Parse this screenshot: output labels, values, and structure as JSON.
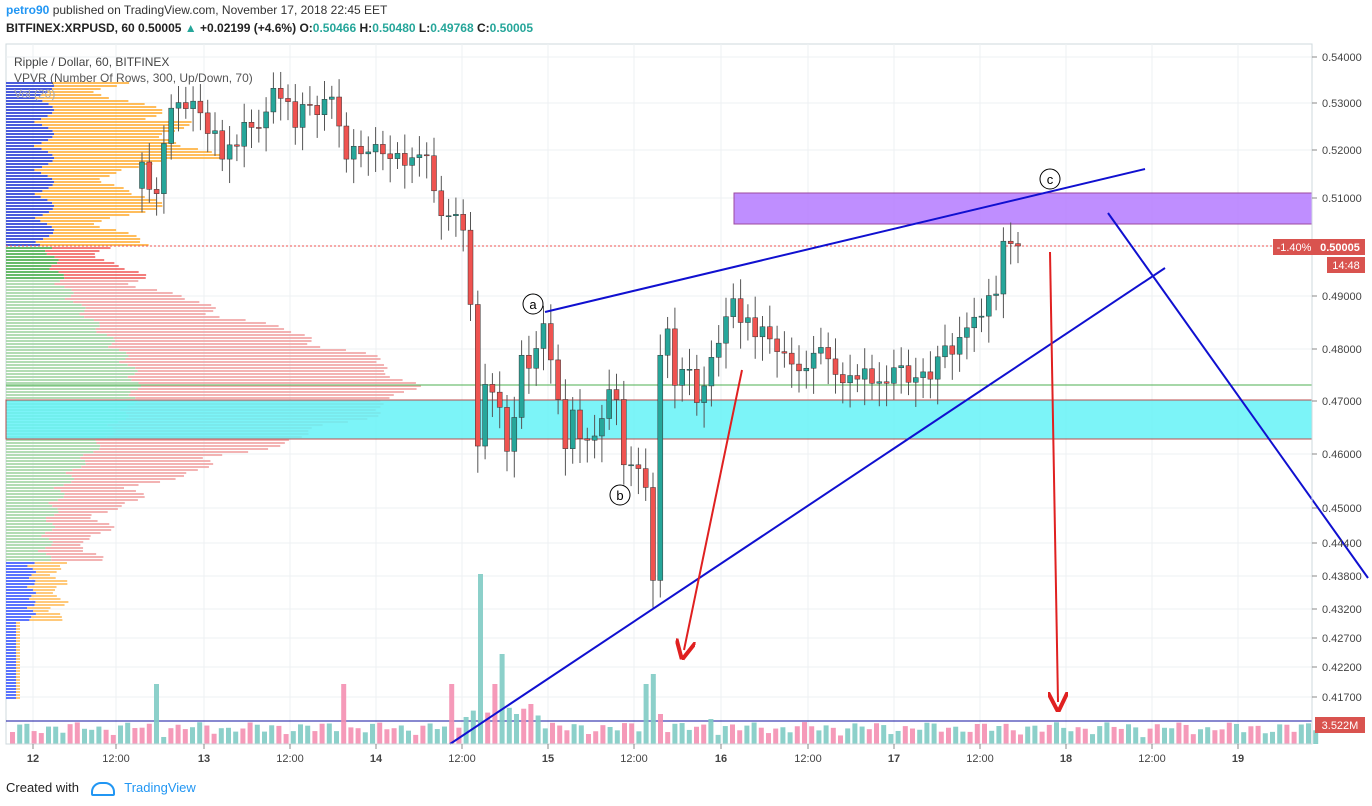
{
  "header": {
    "user": "petro90",
    "published": "published on TradingView.com, November 17, 2018 22:45 EET",
    "symbol_line": "BITFINEX:XRPUSD, 60",
    "last": "0.50005",
    "change": "+0.02199 (+4.6%)",
    "o_label": "O:",
    "o": "0.50466",
    "h_label": "H:",
    "h": "0.50480",
    "l_label": "L:",
    "l": "0.49768",
    "c_label": "C:",
    "c": "0.50005"
  },
  "legend": {
    "title": "Ripple / Dollar, 60, BITFINEX",
    "indicator": "VPVR (Number Of Rows, 300, Up/Down, 70)",
    "volume": "Vol (20)"
  },
  "price_badges": {
    "change_pct": "-1.40%",
    "price": "0.50005",
    "countdown": "14:48",
    "volume": "3.522M"
  },
  "annotations": {
    "a": "a",
    "b": "b",
    "c": "c"
  },
  "footer": {
    "created_with": "Created with",
    "brand": "TradingView"
  },
  "colors": {
    "up": "#26a69a",
    "down": "#ef5350",
    "trend": "#1010d0",
    "arrow": "#e02020",
    "resistance_zone": "#b57bff",
    "support_zone": "#66f3f7"
  },
  "chart_data": {
    "type": "candlestick",
    "y_ticks": [
      "0.54000",
      "0.53000",
      "0.52000",
      "0.51000",
      "0.50000",
      "0.49000",
      "0.48000",
      "0.47000",
      "0.46000",
      "0.45000",
      "0.44400",
      "0.43800",
      "0.43200",
      "0.42700",
      "0.42200",
      "0.41700"
    ],
    "x_ticks": [
      "12",
      "12:00",
      "13",
      "12:00",
      "14",
      "12:00",
      "15",
      "12:00",
      "16",
      "12:00",
      "17",
      "12:00",
      "18",
      "12:00",
      "19"
    ],
    "resistance_zone": [
      0.5048,
      0.5112
    ],
    "support_zone": [
      0.4627,
      0.4705
    ],
    "green_level": 0.4733,
    "last_price": 0.50005,
    "series_close": [
      0.5175,
      0.5118,
      0.5109,
      0.5214,
      0.5289,
      0.5301,
      0.5288,
      0.5304,
      0.5279,
      0.5235,
      0.5241,
      0.5181,
      0.5211,
      0.5208,
      0.5259,
      0.5248,
      0.5247,
      0.5281,
      0.5332,
      0.531,
      0.5303,
      0.5248,
      0.5297,
      0.5295,
      0.5275,
      0.5308,
      0.5313,
      0.5251,
      0.5181,
      0.5208,
      0.5192,
      0.5196,
      0.5212,
      0.5192,
      0.5182,
      0.5193,
      0.5168,
      0.5184,
      0.519,
      0.5188,
      0.5115,
      0.5063,
      0.5063,
      0.5066,
      0.5033,
      0.4884,
      0.4615,
      0.4732,
      0.4717,
      0.4688,
      0.4605,
      0.4669,
      0.4788,
      0.4763,
      0.4801,
      0.4848,
      0.4779,
      0.4703,
      0.461,
      0.4683,
      0.4629,
      0.4626,
      0.4634,
      0.4667,
      0.4722,
      0.4703,
      0.458,
      0.458,
      0.4573,
      0.4538,
      0.4372,
      0.4788,
      0.4838,
      0.473,
      0.4761,
      0.4761,
      0.4697,
      0.4729,
      0.4784,
      0.4811,
      0.4861,
      0.4895,
      0.485,
      0.4859,
      0.4823,
      0.4842,
      0.4819,
      0.4795,
      0.4792,
      0.4771,
      0.4758,
      0.4763,
      0.4792,
      0.4803,
      0.4781,
      0.4751,
      0.4735,
      0.4749,
      0.4742,
      0.4762,
      0.4734,
      0.4737,
      0.4734,
      0.4764,
      0.4768,
      0.4736,
      0.4745,
      0.4756,
      0.4742,
      0.4785,
      0.4806,
      0.479,
      0.4822,
      0.484,
      0.486,
      0.4862,
      0.4901,
      0.4904,
      0.501,
      0.5005,
      0.5
    ]
  }
}
